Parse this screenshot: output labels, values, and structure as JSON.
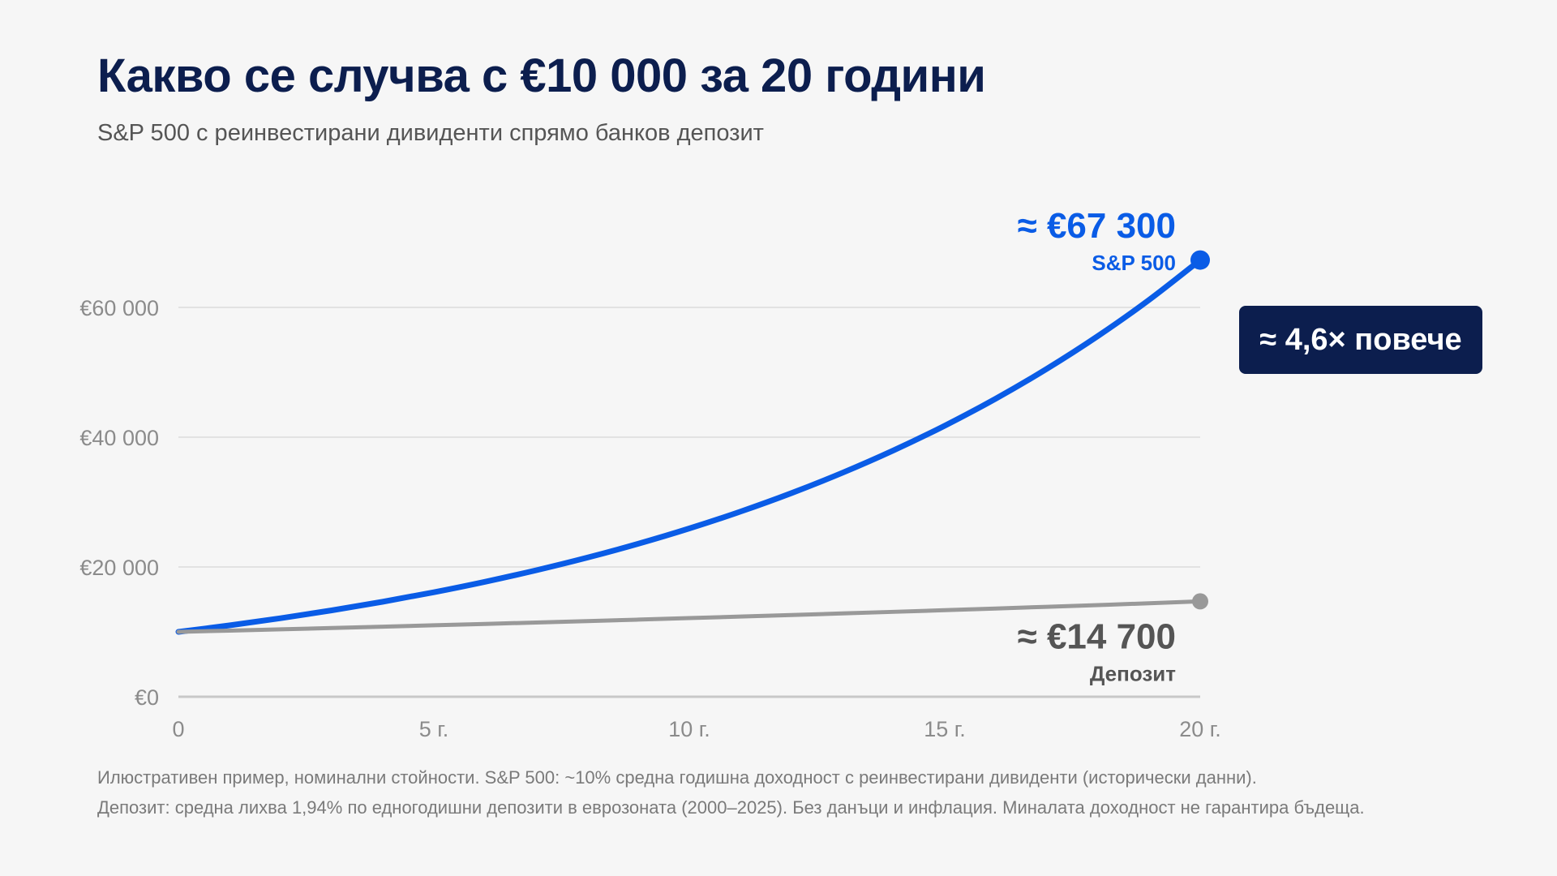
{
  "header": {
    "title": "Какво се случва с €10 000 за 20 години",
    "subtitle": "S&P 500 с реинвестирани дивиденти спрямо банков депозит"
  },
  "chart_data": {
    "type": "line",
    "title": "Какво се случва с €10 000 за 20 години",
    "subtitle": "S&P 500 с реинвестирани дивиденти спрямо банков депозит",
    "xlabel": "",
    "ylabel": "",
    "xlim": [
      0,
      20
    ],
    "ylim": [
      0,
      60000
    ],
    "x_ticks": [
      {
        "value": 0,
        "label": "0"
      },
      {
        "value": 5,
        "label": "5 г."
      },
      {
        "value": 10,
        "label": "10 г."
      },
      {
        "value": 15,
        "label": "15 г."
      },
      {
        "value": 20,
        "label": "20 г."
      }
    ],
    "y_ticks": [
      {
        "value": 0,
        "label": "€0"
      },
      {
        "value": 20000,
        "label": "€20 000"
      },
      {
        "value": 40000,
        "label": "€40 000"
      },
      {
        "value": 60000,
        "label": "€60 000"
      }
    ],
    "grid": true,
    "x": [
      0,
      1,
      2,
      3,
      4,
      5,
      6,
      7,
      8,
      9,
      10,
      11,
      12,
      13,
      14,
      15,
      16,
      17,
      18,
      19,
      20
    ],
    "series": [
      {
        "key": "sp500",
        "name": "S&P 500",
        "color": "#0a5ce6",
        "values": [
          10000,
          11000,
          12100,
          13310,
          14641,
          16105,
          17716,
          19487,
          21436,
          23579,
          25937,
          28531,
          31384,
          34523,
          37975,
          41772,
          45950,
          50545,
          55599,
          61159,
          67300
        ],
        "end_label": "≈ €67 300",
        "end_sublabel": "S&P 500"
      },
      {
        "key": "deposit",
        "name": "Депозит",
        "color": "#999999",
        "values": [
          10000,
          10194,
          10392,
          10593,
          10799,
          11008,
          11222,
          11440,
          11661,
          11888,
          12118,
          12353,
          12593,
          12837,
          13086,
          13340,
          13599,
          13862,
          14131,
          14405,
          14700
        ],
        "end_label": "≈ €14 700",
        "end_sublabel": "Депозит"
      }
    ],
    "annotation": {
      "text": "≈ 4,6× повече",
      "color": "#0c1e4e"
    },
    "label_colors": {
      "sp500": "#0a5ce6",
      "deposit": "#555555",
      "axis_labels": "#8b8b8b",
      "grid": "#e2e2e2",
      "axis_line": "#c8c8c8"
    }
  },
  "footnotes": {
    "line1": "Илюстративен пример, номинални стойности. S&P 500: ~10% средна годишна доходност с реинвестирани дивиденти (исторически данни).",
    "line2": "Депозит: средна лихва 1,94% по едногодишни депозити в еврозоната (2000–2025). Без данъци и инфлация. Миналата доходност не гарантира бъдеща."
  }
}
